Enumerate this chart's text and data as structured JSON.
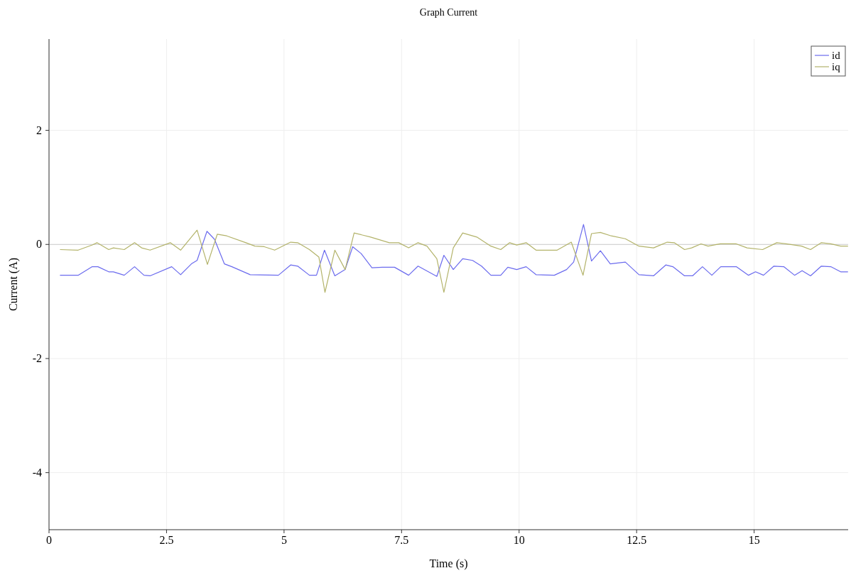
{
  "chart_data": {
    "type": "line",
    "title": "Graph Current",
    "xlabel": "Time (s)",
    "ylabel": "Current (A)",
    "xlim": [
      0,
      17
    ],
    "xticks": [
      0,
      2.5,
      5,
      7.5,
      10,
      12.5,
      15
    ],
    "ylim": [
      -5,
      3.6
    ],
    "yticks": [
      -4,
      -2,
      0,
      2
    ],
    "grid": true,
    "legend": "top right",
    "line_style": "solid",
    "marker": "none",
    "series": [
      {
        "name": "id",
        "color": "#6b6bee",
        "x": [
          0.24,
          0.62,
          0.92,
          1.04,
          1.27,
          1.37,
          1.6,
          1.82,
          2.02,
          2.15,
          2.61,
          2.8,
          3.03,
          3.15,
          3.36,
          3.52,
          3.73,
          3.89,
          4.28,
          4.88,
          5.14,
          5.29,
          5.54,
          5.69,
          5.86,
          6.08,
          6.3,
          6.46,
          6.64,
          6.87,
          7.09,
          7.35,
          7.65,
          7.85,
          8.25,
          8.4,
          8.6,
          8.8,
          9.01,
          9.2,
          9.4,
          9.61,
          9.76,
          9.95,
          10.15,
          10.36,
          10.75,
          11.01,
          11.16,
          11.37,
          11.54,
          11.73,
          11.94,
          12.26,
          12.55,
          12.86,
          13.12,
          13.27,
          13.52,
          13.69,
          13.9,
          14.1,
          14.29,
          14.62,
          14.88,
          15.03,
          15.2,
          15.42,
          15.63,
          15.86,
          16.02,
          16.2,
          16.43,
          16.63,
          16.84,
          16.99
        ],
        "values": [
          -0.54,
          -0.54,
          -0.39,
          -0.39,
          -0.48,
          -0.48,
          -0.54,
          -0.39,
          -0.54,
          -0.55,
          -0.39,
          -0.53,
          -0.34,
          -0.28,
          0.23,
          0.09,
          -0.34,
          -0.39,
          -0.53,
          -0.54,
          -0.36,
          -0.38,
          -0.54,
          -0.54,
          -0.1,
          -0.55,
          -0.44,
          -0.04,
          -0.16,
          -0.41,
          -0.4,
          -0.4,
          -0.54,
          -0.38,
          -0.56,
          -0.19,
          -0.44,
          -0.25,
          -0.28,
          -0.38,
          -0.54,
          -0.54,
          -0.4,
          -0.44,
          -0.39,
          -0.53,
          -0.54,
          -0.44,
          -0.31,
          0.35,
          -0.29,
          -0.11,
          -0.34,
          -0.31,
          -0.53,
          -0.55,
          -0.36,
          -0.39,
          -0.55,
          -0.55,
          -0.39,
          -0.54,
          -0.39,
          -0.39,
          -0.54,
          -0.48,
          -0.54,
          -0.38,
          -0.39,
          -0.54,
          -0.46,
          -0.55,
          -0.38,
          -0.39,
          -0.48,
          -0.48
        ]
      },
      {
        "name": "iq",
        "color": "#b3b36a",
        "x": [
          0.24,
          0.62,
          0.92,
          1.02,
          1.27,
          1.37,
          1.6,
          1.82,
          1.97,
          2.15,
          2.58,
          2.8,
          3.15,
          3.37,
          3.58,
          3.78,
          4.19,
          4.38,
          4.58,
          4.8,
          5.14,
          5.29,
          5.54,
          5.74,
          5.87,
          6.08,
          6.3,
          6.49,
          6.84,
          7.24,
          7.44,
          7.65,
          7.85,
          8.04,
          8.25,
          8.4,
          8.6,
          8.8,
          9.1,
          9.4,
          9.61,
          9.8,
          9.95,
          10.15,
          10.36,
          10.81,
          11.11,
          11.36,
          11.54,
          11.73,
          11.96,
          12.26,
          12.55,
          12.86,
          13.15,
          13.3,
          13.52,
          13.67,
          13.87,
          14.02,
          14.28,
          14.62,
          14.85,
          15.18,
          15.48,
          15.68,
          16.01,
          16.2,
          16.43,
          16.63,
          16.84,
          16.99
        ],
        "values": [
          -0.09,
          -0.1,
          -0.01,
          0.03,
          -0.09,
          -0.06,
          -0.09,
          0.03,
          -0.06,
          -0.1,
          0.03,
          -0.1,
          0.25,
          -0.35,
          0.18,
          0.15,
          0.03,
          -0.03,
          -0.04,
          -0.1,
          0.04,
          0.03,
          -0.09,
          -0.22,
          -0.84,
          -0.1,
          -0.44,
          0.2,
          0.13,
          0.03,
          0.03,
          -0.06,
          0.03,
          -0.03,
          -0.25,
          -0.84,
          -0.06,
          0.2,
          0.13,
          -0.03,
          -0.09,
          0.03,
          -0.01,
          0.03,
          -0.1,
          -0.1,
          0.04,
          -0.54,
          0.19,
          0.21,
          0.15,
          0.1,
          -0.03,
          -0.06,
          0.04,
          0.03,
          -0.09,
          -0.06,
          0.01,
          -0.03,
          0.01,
          0.01,
          -0.06,
          -0.09,
          0.03,
          0.01,
          -0.03,
          -0.09,
          0.03,
          0.01,
          -0.03,
          -0.03
        ]
      }
    ]
  }
}
